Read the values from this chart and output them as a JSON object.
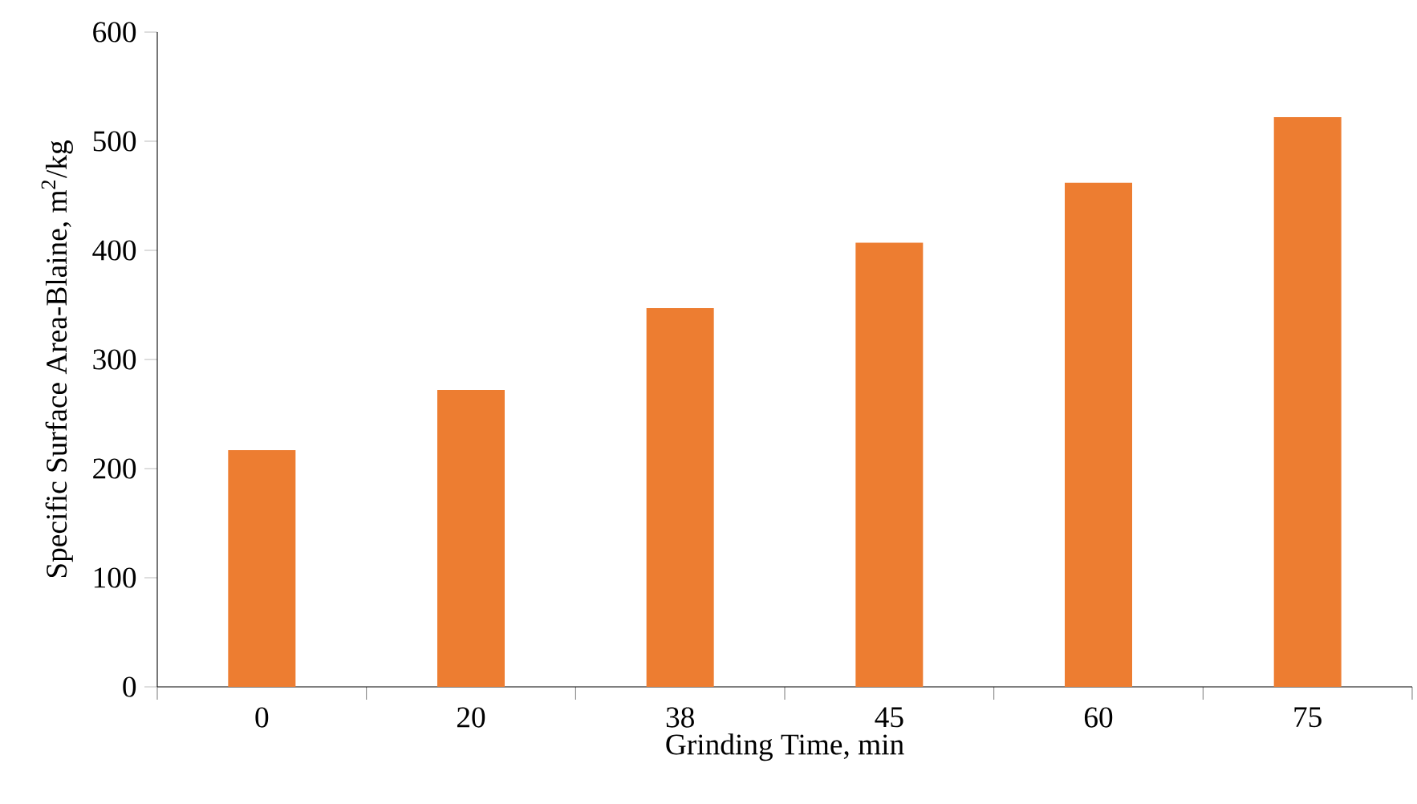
{
  "chart_data": {
    "type": "bar",
    "xlabel": "Grinding Time, min",
    "ylabel": "Specific Surface Area-Blaine,  m$^{2}$/kg",
    "categories": [
      "0",
      "20",
      "38",
      "45",
      "60",
      "75"
    ],
    "values": [
      217,
      272,
      347,
      407,
      462,
      522
    ],
    "color": "#ed7d31",
    "ylim": [
      0,
      600
    ],
    "yticks": [
      0,
      100,
      200,
      300,
      400,
      500,
      600
    ],
    "grid": false
  }
}
